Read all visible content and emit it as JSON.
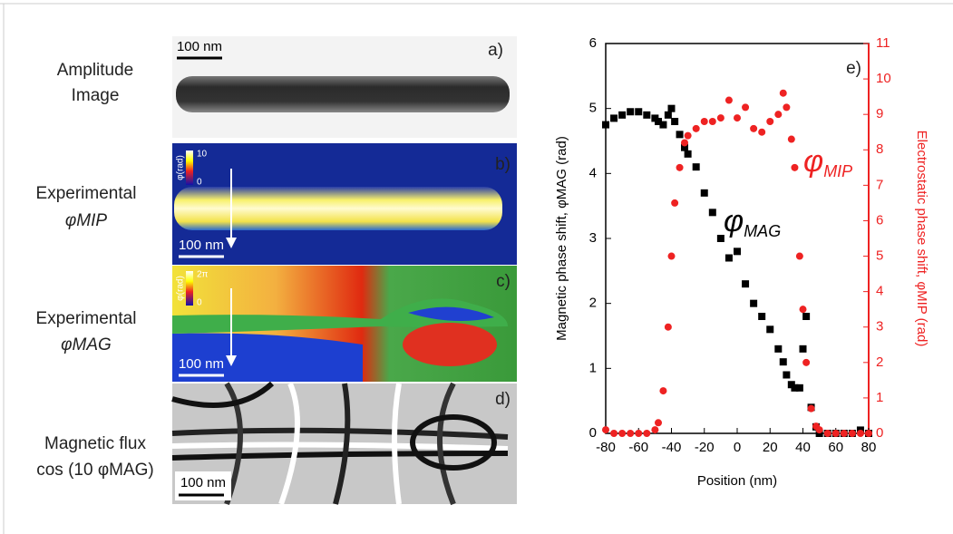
{
  "figure": {
    "panels": [
      {
        "letter": "a)",
        "label_lines": [
          "Amplitude",
          "Image"
        ],
        "scale_bar": "100 nm"
      },
      {
        "letter": "b)",
        "label_lines": [
          "Experimental",
          "φMIP"
        ],
        "scale_bar": "100 nm",
        "colorbar_title": "φ(rad)",
        "colorbar_max": "10",
        "colorbar_min": "0"
      },
      {
        "letter": "c)",
        "label_lines": [
          "Experimental",
          "φMAG"
        ],
        "scale_bar": "100 nm",
        "colorbar_title": "φ(rad)",
        "colorbar_max": "2π",
        "colorbar_min": "0"
      },
      {
        "letter": "d)",
        "label_lines": [
          "Magnetic flux",
          "cos (10 φMAG)"
        ],
        "scale_bar": "100 nm"
      }
    ]
  },
  "chart_data": {
    "type": "scatter",
    "panel_letter": "e)",
    "xlabel": "Position (nm)",
    "ylabel": "Magnetic phase shift, φMAG (rad)",
    "y2label": "Electrostatic phase shift, φMIP (rad)",
    "annotations": [
      {
        "symbol": "φ",
        "subscript": "MAG"
      },
      {
        "symbol": "φ",
        "subscript": "MIP"
      }
    ],
    "x": [
      -80,
      -75,
      -70,
      -65,
      -60,
      -55,
      -50,
      -48,
      -45,
      -42,
      -40,
      -38,
      -35,
      -32,
      -30,
      -25,
      -20,
      -15,
      -10,
      -5,
      0,
      5,
      10,
      15,
      20,
      25,
      28,
      30,
      33,
      35,
      38,
      40,
      42,
      45,
      48,
      50,
      55,
      60,
      65,
      70,
      75,
      80
    ],
    "series": [
      {
        "name": "φMAG",
        "color": "#000000",
        "marker": "square",
        "values": [
          4.75,
          4.85,
          4.9,
          4.95,
          4.95,
          4.9,
          4.85,
          4.8,
          4.75,
          4.9,
          5.0,
          4.8,
          4.6,
          4.4,
          4.3,
          4.1,
          3.7,
          3.4,
          3.0,
          2.7,
          2.8,
          2.3,
          2.0,
          1.8,
          1.6,
          1.3,
          1.1,
          0.9,
          0.75,
          0.7,
          0.7,
          1.3,
          1.8,
          0.4,
          0.1,
          0,
          0,
          0,
          0,
          0,
          0.05,
          0
        ]
      },
      {
        "name": "φMIP",
        "color": "#ee2222",
        "marker": "circle",
        "axis": "y2",
        "values": [
          0.1,
          0,
          0,
          0,
          0,
          0,
          0.1,
          0.3,
          1.2,
          3,
          5,
          6.5,
          7.5,
          8.2,
          8.4,
          8.6,
          8.8,
          8.8,
          8.9,
          9.4,
          8.9,
          9.2,
          8.6,
          8.5,
          8.8,
          9.0,
          9.6,
          9.2,
          8.3,
          7.5,
          5.0,
          3.5,
          2.0,
          0.7,
          0.2,
          0.1,
          0,
          0,
          0,
          0,
          0,
          0
        ]
      }
    ],
    "xlim": [
      -80,
      80
    ],
    "xticks": [
      -80,
      -60,
      -40,
      -20,
      0,
      20,
      40,
      60,
      80
    ],
    "ylim": [
      0,
      6
    ],
    "yticks": [
      0,
      1,
      2,
      3,
      4,
      5,
      6
    ],
    "y2lim": [
      0,
      11
    ],
    "y2ticks": [
      0,
      1,
      2,
      3,
      4,
      5,
      6,
      7,
      8,
      9,
      10,
      11
    ]
  }
}
